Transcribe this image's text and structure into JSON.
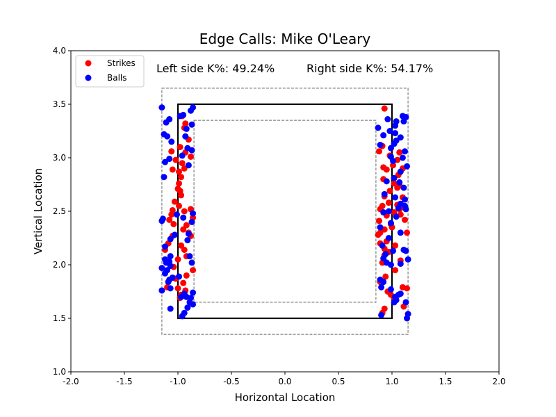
{
  "chart_data": {
    "type": "scatter",
    "title": "Edge Calls: Mike O'Leary",
    "xlabel": "Horizontal Location",
    "ylabel": "Vertical Location",
    "xlim": [
      -2.0,
      2.0
    ],
    "ylim": [
      1.0,
      4.0
    ],
    "xticks": [
      "-2.0",
      "-1.5",
      "-1.0",
      "-0.5",
      "0.0",
      "0.5",
      "1.0",
      "1.5",
      "2.0"
    ],
    "yticks": [
      "1.0",
      "1.5",
      "2.0",
      "2.5",
      "3.0",
      "3.5",
      "4.0"
    ],
    "annotations": {
      "left": "Left side K%: 49.24%",
      "right": "Right side K%: 54.17%"
    },
    "legend": {
      "position": "upper-left",
      "entries": [
        {
          "label": "Strikes",
          "color": "#ff0000"
        },
        {
          "label": "Balls",
          "color": "#0000ff"
        }
      ]
    },
    "strike_zone": {
      "x": [
        -1.0,
        1.0
      ],
      "y": [
        1.5,
        3.5
      ]
    },
    "outer_edge": {
      "x": [
        -1.15,
        1.15
      ],
      "y": [
        1.35,
        3.65
      ]
    },
    "inner_edge": {
      "x": [
        -0.85,
        0.85
      ],
      "y": [
        1.65,
        3.35
      ]
    },
    "series": [
      {
        "name": "Strikes",
        "color": "#ff0000",
        "points": [
          [
            -0.96,
            3.39
          ],
          [
            -0.93,
            3.32
          ],
          [
            -0.94,
            3.28
          ],
          [
            -0.9,
            3.17
          ],
          [
            -0.98,
            3.1
          ],
          [
            -1.06,
            3.06
          ],
          [
            -0.93,
            3.05
          ],
          [
            -0.88,
            3.01
          ],
          [
            -1.02,
            2.98
          ],
          [
            -0.96,
            2.95
          ],
          [
            -0.94,
            2.9
          ],
          [
            -0.99,
            2.87
          ],
          [
            -1.05,
            2.89
          ],
          [
            -0.97,
            2.82
          ],
          [
            -0.99,
            2.76
          ],
          [
            -1.0,
            2.71
          ],
          [
            -0.98,
            2.69
          ],
          [
            -0.97,
            2.65
          ],
          [
            -1.03,
            2.59
          ],
          [
            -0.99,
            2.55
          ],
          [
            -0.94,
            2.5
          ],
          [
            -0.88,
            2.52
          ],
          [
            -1.06,
            2.47
          ],
          [
            -1.08,
            2.42
          ],
          [
            -1.04,
            2.38
          ],
          [
            -0.92,
            2.37
          ],
          [
            -0.95,
            2.33
          ],
          [
            -0.9,
            2.3
          ],
          [
            -0.88,
            2.27
          ],
          [
            -1.05,
            2.27
          ],
          [
            -1.09,
            2.2
          ],
          [
            -0.97,
            2.18
          ],
          [
            -0.94,
            2.14
          ],
          [
            -1.12,
            2.14
          ],
          [
            -0.92,
            2.08
          ],
          [
            -1.0,
            2.05
          ],
          [
            -1.04,
            1.98
          ],
          [
            -0.86,
            1.95
          ],
          [
            -0.92,
            1.9
          ],
          [
            -1.02,
            1.87
          ],
          [
            -0.95,
            1.83
          ],
          [
            -1.1,
            1.79
          ],
          [
            -1.0,
            1.78
          ],
          [
            -0.93,
            1.76
          ],
          [
            -0.97,
            1.72
          ],
          [
            -0.98,
            1.69
          ],
          [
            -0.86,
            2.44
          ],
          [
            -1.05,
            2.51
          ],
          [
            0.93,
            3.46
          ],
          [
            0.91,
            3.11
          ],
          [
            0.88,
            3.06
          ],
          [
            0.98,
            3.02
          ],
          [
            1.07,
            3.05
          ],
          [
            1.05,
            2.98
          ],
          [
            1.01,
            2.93
          ],
          [
            0.92,
            2.91
          ],
          [
            0.95,
            2.89
          ],
          [
            1.1,
            2.9
          ],
          [
            1.06,
            2.84
          ],
          [
            0.92,
            2.8
          ],
          [
            1.02,
            2.76
          ],
          [
            1.07,
            2.74
          ],
          [
            1.05,
            2.72
          ],
          [
            0.98,
            2.69
          ],
          [
            0.93,
            2.64
          ],
          [
            1.1,
            2.63
          ],
          [
            0.97,
            2.58
          ],
          [
            1.05,
            2.56
          ],
          [
            0.91,
            2.55
          ],
          [
            1.12,
            2.53
          ],
          [
            0.89,
            2.52
          ],
          [
            1.07,
            2.52
          ],
          [
            0.95,
            2.46
          ],
          [
            1.02,
            2.49
          ],
          [
            1.08,
            2.47
          ],
          [
            0.88,
            2.41
          ],
          [
            0.99,
            2.38
          ],
          [
            0.93,
            2.33
          ],
          [
            0.89,
            2.3
          ],
          [
            1.14,
            2.3
          ],
          [
            0.95,
            2.22
          ],
          [
            0.89,
            2.2
          ],
          [
            1.03,
            2.18
          ],
          [
            0.93,
            2.15
          ],
          [
            0.97,
            2.12
          ],
          [
            0.93,
            2.09
          ],
          [
            1.08,
            2.04
          ],
          [
            0.91,
            2.02
          ],
          [
            1.03,
            1.95
          ],
          [
            0.94,
            1.89
          ],
          [
            0.89,
            1.84
          ],
          [
            1.1,
            1.79
          ],
          [
            1.14,
            1.78
          ],
          [
            0.96,
            1.75
          ],
          [
            0.99,
            1.72
          ],
          [
            1.02,
            1.68
          ],
          [
            1.11,
            1.61
          ],
          [
            0.93,
            1.59
          ],
          [
            0.91,
            1.55
          ],
          [
            0.87,
            2.28
          ],
          [
            1.0,
            2.35
          ],
          [
            1.12,
            2.42
          ]
        ]
      },
      {
        "name": "Balls",
        "color": "#0000ff",
        "points": [
          [
            -1.15,
            3.47
          ],
          [
            -0.86,
            3.47
          ],
          [
            -0.88,
            3.44
          ],
          [
            -0.98,
            3.39
          ],
          [
            -0.95,
            3.4
          ],
          [
            -1.08,
            3.36
          ],
          [
            -1.11,
            3.33
          ],
          [
            -0.87,
            3.31
          ],
          [
            -0.92,
            3.27
          ],
          [
            -1.13,
            3.22
          ],
          [
            -1.1,
            3.2
          ],
          [
            -0.93,
            3.2
          ],
          [
            -1.06,
            3.15
          ],
          [
            -0.91,
            3.09
          ],
          [
            -0.87,
            3.07
          ],
          [
            -0.96,
            3.02
          ],
          [
            -1.08,
            2.99
          ],
          [
            -1.12,
            2.96
          ],
          [
            -0.9,
            2.93
          ],
          [
            -1.13,
            2.82
          ],
          [
            -0.87,
            2.4
          ],
          [
            -1.14,
            2.43
          ],
          [
            -1.15,
            2.41
          ],
          [
            -0.86,
            2.48
          ],
          [
            -0.95,
            2.44
          ],
          [
            -1.01,
            2.47
          ],
          [
            -0.9,
            2.29
          ],
          [
            -0.91,
            2.23
          ],
          [
            -1.07,
            2.24
          ],
          [
            -1.03,
            2.28
          ],
          [
            -1.12,
            2.17
          ],
          [
            -1.07,
            2.08
          ],
          [
            -0.89,
            2.08
          ],
          [
            -0.87,
            2.02
          ],
          [
            -1.12,
            2.05
          ],
          [
            -1.11,
            2.02
          ],
          [
            -1.08,
            2.03
          ],
          [
            -1.15,
            1.97
          ],
          [
            -1.07,
            1.99
          ],
          [
            -1.1,
            1.95
          ],
          [
            -1.12,
            1.92
          ],
          [
            -1.05,
            1.88
          ],
          [
            -1.08,
            1.86
          ],
          [
            -0.99,
            1.89
          ],
          [
            -1.09,
            1.84
          ],
          [
            -1.07,
            1.78
          ],
          [
            -1.15,
            1.76
          ],
          [
            -0.86,
            1.74
          ],
          [
            -0.94,
            1.73
          ],
          [
            -0.88,
            1.69
          ],
          [
            -0.92,
            1.7
          ],
          [
            -0.97,
            1.7
          ],
          [
            -0.86,
            1.63
          ],
          [
            -0.91,
            1.6
          ],
          [
            -1.07,
            1.59
          ],
          [
            -0.94,
            1.55
          ],
          [
            -0.96,
            1.52
          ],
          [
            -0.89,
            1.65
          ],
          [
            0.96,
            3.36
          ],
          [
            1.04,
            3.34
          ],
          [
            1.11,
            3.34
          ],
          [
            1.03,
            3.3
          ],
          [
            1.13,
            3.38
          ],
          [
            1.1,
            3.39
          ],
          [
            0.87,
            3.28
          ],
          [
            0.98,
            3.25
          ],
          [
            1.03,
            3.23
          ],
          [
            0.92,
            3.21
          ],
          [
            1.08,
            3.19
          ],
          [
            1.04,
            3.16
          ],
          [
            1.02,
            3.13
          ],
          [
            0.89,
            3.12
          ],
          [
            0.99,
            3.09
          ],
          [
            1.12,
            3.06
          ],
          [
            0.99,
            3.01
          ],
          [
            1.1,
            3.0
          ],
          [
            1.01,
            2.97
          ],
          [
            1.14,
            2.92
          ],
          [
            1.08,
            2.87
          ],
          [
            1.02,
            2.81
          ],
          [
            0.95,
            2.78
          ],
          [
            1.07,
            2.77
          ],
          [
            1.11,
            2.72
          ],
          [
            0.93,
            2.66
          ],
          [
            1.03,
            2.63
          ],
          [
            1.12,
            2.61
          ],
          [
            1.08,
            2.57
          ],
          [
            1.12,
            2.55
          ],
          [
            1.06,
            2.53
          ],
          [
            1.13,
            2.52
          ],
          [
            0.92,
            2.49
          ],
          [
            1.04,
            2.45
          ],
          [
            0.99,
            2.39
          ],
          [
            0.89,
            2.35
          ],
          [
            1.08,
            2.3
          ],
          [
            0.97,
            2.25
          ],
          [
            0.91,
            2.18
          ],
          [
            1.01,
            2.13
          ],
          [
            1.13,
            2.13
          ],
          [
            1.11,
            2.14
          ],
          [
            0.94,
            2.1
          ],
          [
            0.92,
            2.06
          ],
          [
            1.15,
            2.05
          ],
          [
            0.99,
            2.0
          ],
          [
            0.95,
            2.02
          ],
          [
            1.08,
            2.01
          ],
          [
            0.89,
            1.86
          ],
          [
            0.92,
            1.84
          ],
          [
            0.9,
            1.79
          ],
          [
            0.99,
            1.77
          ],
          [
            1.04,
            1.67
          ],
          [
            1.02,
            1.65
          ],
          [
            1.13,
            1.65
          ],
          [
            1.08,
            1.73
          ],
          [
            0.9,
            1.53
          ],
          [
            1.14,
            1.5
          ],
          [
            1.15,
            1.54
          ],
          [
            1.06,
            1.72
          ],
          [
            1.03,
            1.7
          ],
          [
            0.97,
            2.5
          ]
        ]
      }
    ]
  }
}
